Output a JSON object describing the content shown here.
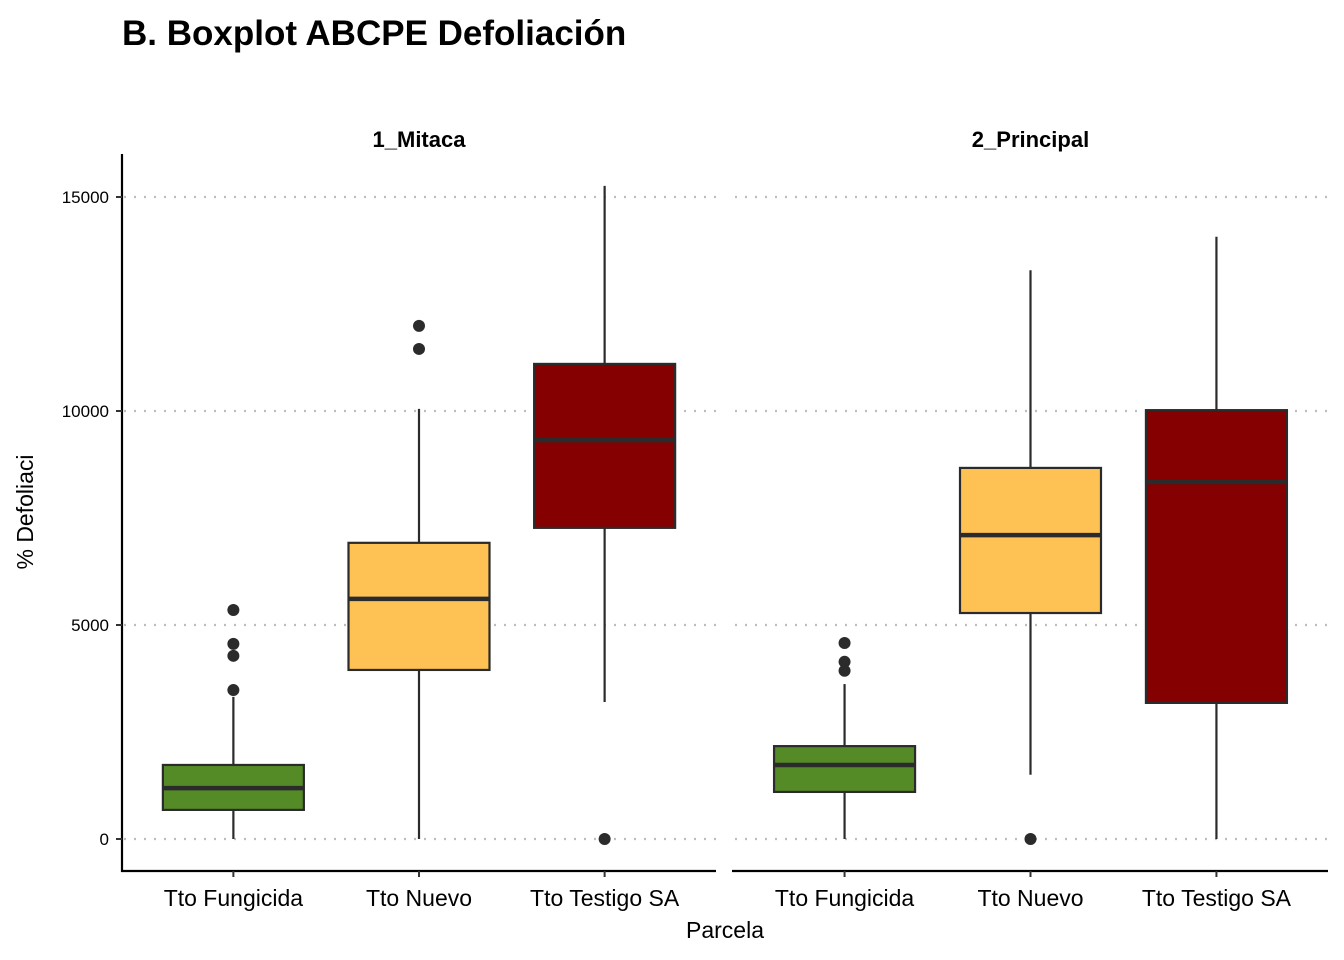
{
  "chart_data": {
    "type": "boxplot",
    "title": "B. Boxplot ABCPE Defoliación",
    "xlabel": "Parcela",
    "ylabel": "% Defoliaci",
    "ylim": [
      -700,
      16000
    ],
    "yticks": [
      0,
      5000,
      10000,
      15000
    ],
    "ytick_labels": [
      "0",
      "5000",
      "10000",
      "15000"
    ],
    "grid": "horizontal dotted major",
    "categories": [
      "Tto Fungicida",
      "Tto Nuevo",
      "Tto Testigo SA"
    ],
    "colors": {
      "Tto Fungicida": "#548b27",
      "Tto Nuevo": "#fdc253",
      "Tto Testigo SA": "#850000",
      "outline": "#2b2b2b",
      "grid": "#bdbdbd"
    },
    "facets": [
      {
        "label": "1_Mitaca",
        "boxes": [
          {
            "category": "Tto Fungicida",
            "whisker_low": 0,
            "q1": 680,
            "median": 1190,
            "q3": 1730,
            "whisker_high": 3320,
            "outliers": [
              3480,
              4280,
              4560,
              5350
            ]
          },
          {
            "category": "Tto Nuevo",
            "whisker_low": 0,
            "q1": 3950,
            "median": 5610,
            "q3": 6920,
            "whisker_high": 10050,
            "outliers": [
              11450,
              11990
            ]
          },
          {
            "category": "Tto Testigo SA",
            "whisker_low": 3200,
            "q1": 7270,
            "median": 9320,
            "q3": 11100,
            "whisker_high": 15260,
            "outliers": [
              0
            ]
          }
        ]
      },
      {
        "label": "2_Principal",
        "boxes": [
          {
            "category": "Tto Fungicida",
            "whisker_low": 0,
            "q1": 1100,
            "median": 1730,
            "q3": 2170,
            "whisker_high": 3620,
            "outliers": [
              3930,
              4140,
              4580
            ]
          },
          {
            "category": "Tto Nuevo",
            "whisker_low": 1500,
            "q1": 5280,
            "median": 7100,
            "q3": 8670,
            "whisker_high": 13290,
            "outliers": [
              0
            ]
          },
          {
            "category": "Tto Testigo SA",
            "whisker_low": 0,
            "q1": 3180,
            "median": 8340,
            "q3": 10020,
            "whisker_high": 14070,
            "outliers": []
          }
        ]
      }
    ]
  }
}
